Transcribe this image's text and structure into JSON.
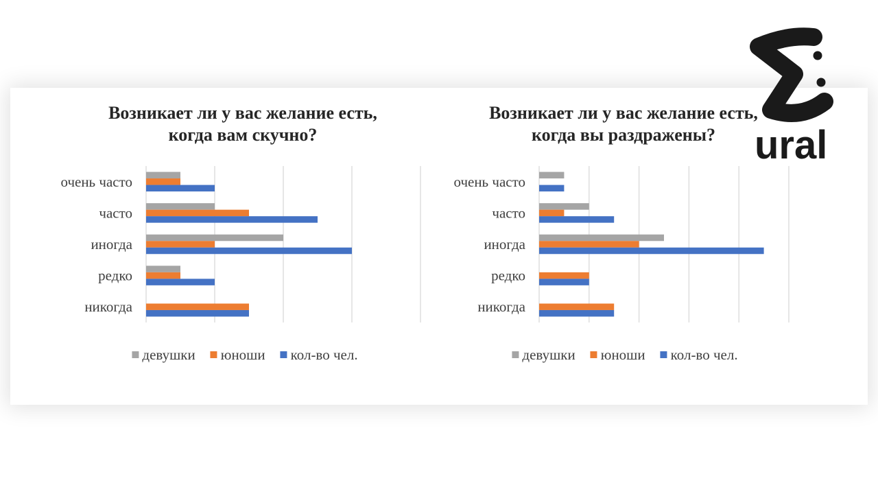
{
  "logo": {
    "wordmark": "ural"
  },
  "chart_data": [
    {
      "type": "bar",
      "horizontal": true,
      "title": "Возникает ли у вас желание есть, когда вам скучно?",
      "categories": [
        "очень часто",
        "часто",
        "иногда",
        "редко",
        "никогда"
      ],
      "series": [
        {
          "name": "девушки",
          "color": "#a5a5a5",
          "values": [
            1,
            2,
            4,
            1,
            0
          ]
        },
        {
          "name": "юноши",
          "color": "#ed7d31",
          "values": [
            1,
            3,
            2,
            1,
            3
          ]
        },
        {
          "name": "кол-во чел.",
          "color": "#4472c4",
          "values": [
            2,
            5,
            6,
            2,
            3
          ]
        }
      ],
      "xlim": [
        0,
        8
      ],
      "grid": true,
      "grid_step": 2,
      "legend": "bottom"
    },
    {
      "type": "bar",
      "horizontal": true,
      "title": "Возникает ли у вас желание есть, когда вы раздражены?",
      "categories": [
        "очень часто",
        "часто",
        "иногда",
        "редко",
        "никогда"
      ],
      "series": [
        {
          "name": "девушки",
          "color": "#a5a5a5",
          "values": [
            1,
            2,
            5,
            0,
            0
          ]
        },
        {
          "name": "юноши",
          "color": "#ed7d31",
          "values": [
            0,
            1,
            4,
            2,
            3
          ]
        },
        {
          "name": "кол-во чел.",
          "color": "#4472c4",
          "values": [
            1,
            3,
            9,
            2,
            3
          ]
        }
      ],
      "xlim": [
        0,
        10
      ],
      "grid": true,
      "grid_step": 2,
      "legend": "bottom"
    }
  ]
}
